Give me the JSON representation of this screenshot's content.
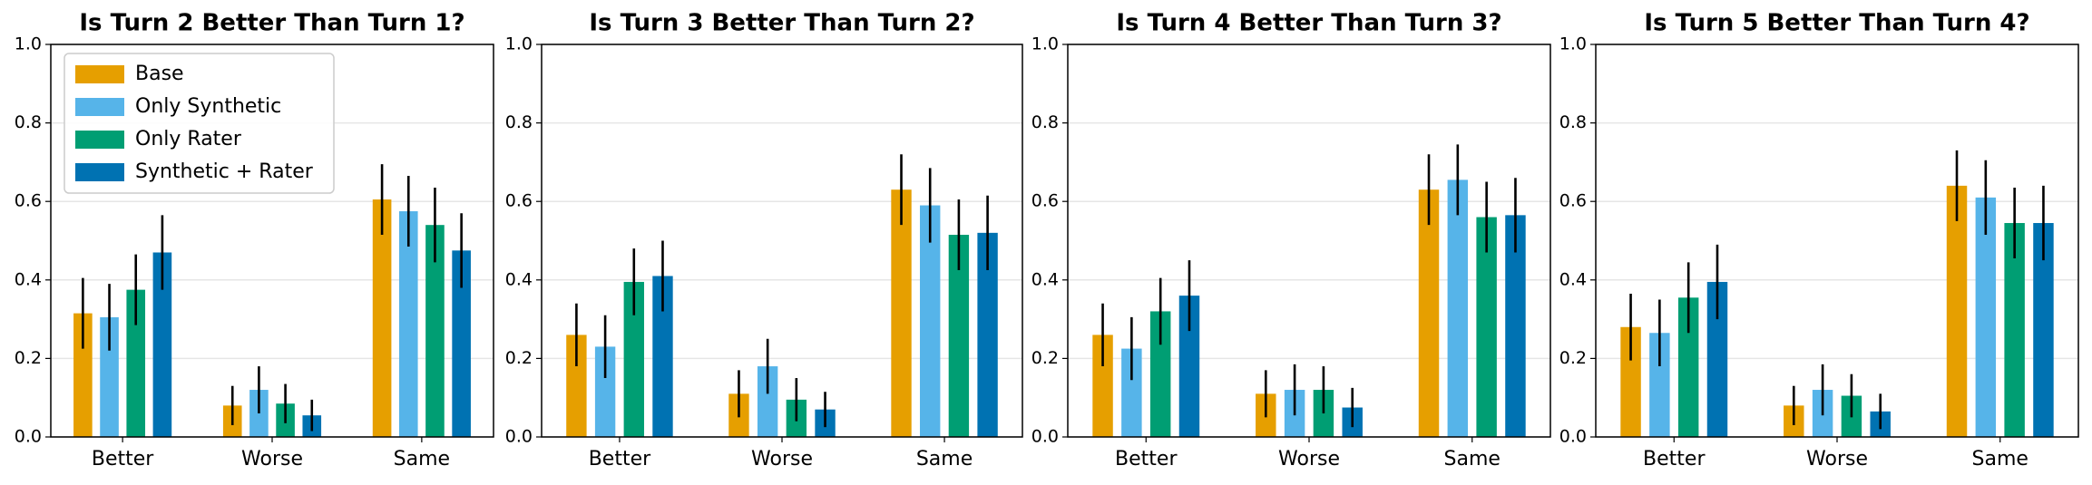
{
  "chart_data": [
    {
      "type": "bar",
      "title": "Is Turn 2 Better Than Turn 1?",
      "categories": [
        "Better",
        "Worse",
        "Same"
      ],
      "series": [
        {
          "name": "Base",
          "color": "#e69f00",
          "values": [
            0.315,
            0.08,
            0.605
          ],
          "errors": [
            0.09,
            0.05,
            0.09
          ]
        },
        {
          "name": "Only Synthetic",
          "color": "#56b4e9",
          "values": [
            0.305,
            0.12,
            0.575
          ],
          "errors": [
            0.085,
            0.06,
            0.09
          ]
        },
        {
          "name": "Only Rater",
          "color": "#009e73",
          "values": [
            0.375,
            0.085,
            0.54
          ],
          "errors": [
            0.09,
            0.05,
            0.095
          ]
        },
        {
          "name": "Synthetic + Rater",
          "color": "#0072b2",
          "values": [
            0.47,
            0.055,
            0.475
          ],
          "errors": [
            0.095,
            0.04,
            0.095
          ]
        }
      ],
      "ylim": [
        0,
        1
      ],
      "yticks": [
        {
          "value": 0,
          "label": "0.0"
        },
        0.2,
        0.4,
        0.6,
        0.8,
        {
          "value": 1,
          "label": "1.0"
        }
      ],
      "grid": true,
      "legend": "upper left"
    },
    {
      "type": "bar",
      "title": "Is Turn 3 Better Than Turn 2?",
      "categories": [
        "Better",
        "Worse",
        "Same"
      ],
      "series": [
        {
          "color": "#e69f00",
          "values": [
            0.26,
            0.11,
            0.63
          ],
          "errors": [
            0.08,
            0.06,
            0.09
          ]
        },
        {
          "color": "#56b4e9",
          "values": [
            0.23,
            0.18,
            0.59
          ],
          "errors": [
            0.08,
            0.07,
            0.095
          ]
        },
        {
          "color": "#009e73",
          "values": [
            0.395,
            0.095,
            0.515
          ],
          "errors": [
            0.085,
            0.055,
            0.09
          ]
        },
        {
          "color": "#0072b2",
          "values": [
            0.41,
            0.07,
            0.52
          ],
          "errors": [
            0.09,
            0.045,
            0.095
          ]
        }
      ],
      "ylim": [
        0,
        1
      ],
      "yticks": [
        {
          "value": 0,
          "label": "0.0"
        },
        0.2,
        0.4,
        0.6,
        0.8,
        {
          "value": 1,
          "label": "1.0"
        }
      ],
      "grid": true
    },
    {
      "type": "bar",
      "title": "Is Turn 4 Better Than Turn 3?",
      "categories": [
        "Better",
        "Worse",
        "Same"
      ],
      "series": [
        {
          "color": "#e69f00",
          "values": [
            0.26,
            0.11,
            0.63
          ],
          "errors": [
            0.08,
            0.06,
            0.09
          ]
        },
        {
          "color": "#56b4e9",
          "values": [
            0.225,
            0.12,
            0.655
          ],
          "errors": [
            0.08,
            0.065,
            0.09
          ]
        },
        {
          "color": "#009e73",
          "values": [
            0.32,
            0.12,
            0.56
          ],
          "errors": [
            0.085,
            0.06,
            0.09
          ]
        },
        {
          "color": "#0072b2",
          "values": [
            0.36,
            0.075,
            0.565
          ],
          "errors": [
            0.09,
            0.05,
            0.095
          ]
        }
      ],
      "ylim": [
        0,
        1
      ],
      "yticks": [
        {
          "value": 0,
          "label": "0.0"
        },
        0.2,
        0.4,
        0.6,
        0.8,
        {
          "value": 1,
          "label": "1.0"
        }
      ],
      "grid": true
    },
    {
      "type": "bar",
      "title": "Is Turn 5 Better Than Turn 4?",
      "categories": [
        "Better",
        "Worse",
        "Same"
      ],
      "series": [
        {
          "color": "#e69f00",
          "values": [
            0.28,
            0.08,
            0.64
          ],
          "errors": [
            0.085,
            0.05,
            0.09
          ]
        },
        {
          "color": "#56b4e9",
          "values": [
            0.265,
            0.12,
            0.61
          ],
          "errors": [
            0.085,
            0.065,
            0.095
          ]
        },
        {
          "color": "#009e73",
          "values": [
            0.355,
            0.105,
            0.545
          ],
          "errors": [
            0.09,
            0.055,
            0.09
          ]
        },
        {
          "color": "#0072b2",
          "values": [
            0.395,
            0.065,
            0.545
          ],
          "errors": [
            0.095,
            0.045,
            0.095
          ]
        }
      ],
      "ylim": [
        0,
        1
      ],
      "yticks": [
        {
          "value": 0,
          "label": "0.0"
        },
        0.2,
        0.4,
        0.6,
        0.8,
        {
          "value": 1,
          "label": "1.0"
        }
      ],
      "grid": true
    }
  ]
}
